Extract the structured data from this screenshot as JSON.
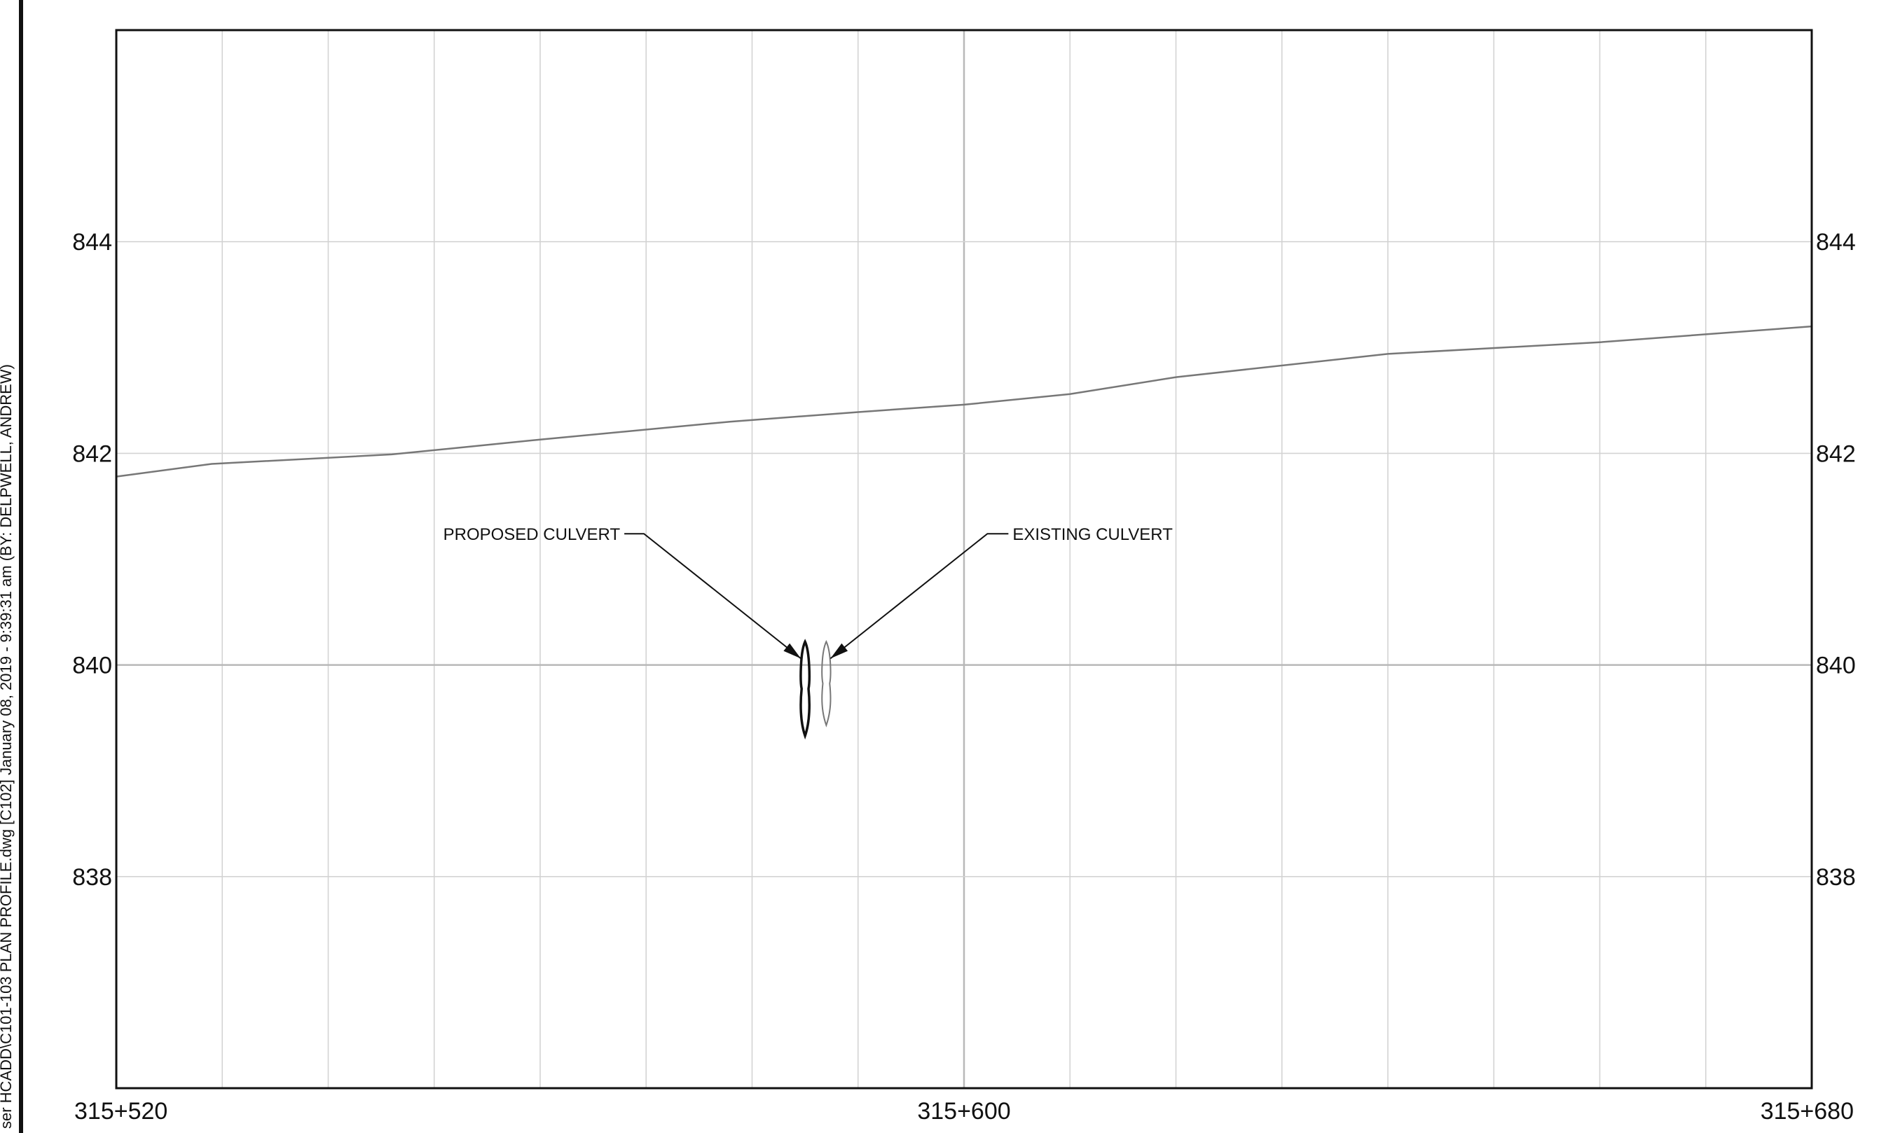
{
  "sheet": {
    "side_annotation": "ser HCADD\\C101-103 PLAN PROFILE.dwg [C102]  January 08, 2019 - 9:39:31 am (BY: DELPWELL, ANDREW)"
  },
  "chart_data": {
    "type": "line",
    "title": "",
    "xlabel": "",
    "ylabel": "",
    "x_ticks": [
      {
        "station": 315520,
        "label": "315+520"
      },
      {
        "station": 315600,
        "label": "315+600"
      },
      {
        "station": 315680,
        "label": "315+680"
      }
    ],
    "x_grid_step": 10,
    "xlim": [
      315520,
      315680
    ],
    "y_ticks": [
      {
        "value": 838,
        "label": "838"
      },
      {
        "value": 840,
        "label": "840"
      },
      {
        "value": 842,
        "label": "842"
      },
      {
        "value": 844,
        "label": "844"
      }
    ],
    "ylim": [
      836,
      846
    ],
    "grid": true,
    "series": [
      {
        "color": "#777777",
        "points": [
          [
            315520,
            841.78
          ],
          [
            315529,
            841.9
          ],
          [
            315546,
            841.99
          ],
          [
            315560,
            842.13
          ],
          [
            315578,
            842.3
          ],
          [
            315590,
            842.39
          ],
          [
            315600,
            842.46
          ],
          [
            315610,
            842.56
          ],
          [
            315620,
            842.72
          ],
          [
            315640,
            842.94
          ],
          [
            315660,
            843.05
          ],
          [
            315680,
            843.2
          ]
        ]
      }
    ],
    "culverts": [
      {
        "label": "PROPOSED CULVERT",
        "station": 315585,
        "top": 840.22,
        "bottom": 839.33,
        "color": "#111111",
        "label_side": "left"
      },
      {
        "label": "EXISTING CULVERT",
        "station": 315587,
        "top": 840.22,
        "bottom": 839.43,
        "color": "#777777",
        "label_side": "right"
      }
    ]
  }
}
